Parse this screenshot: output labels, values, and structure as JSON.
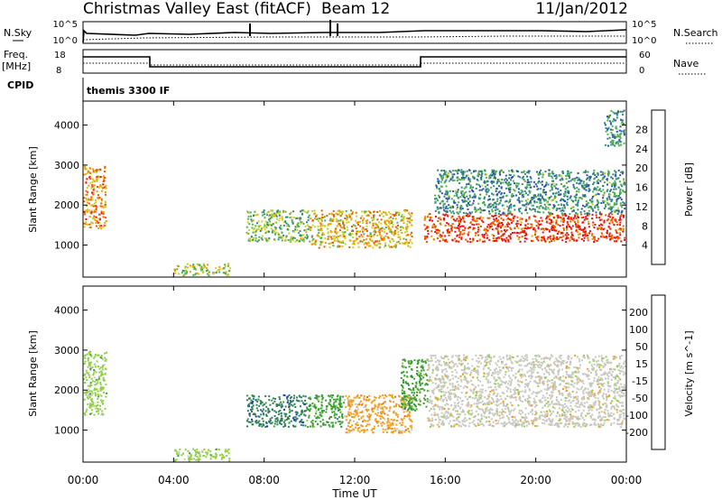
{
  "header": {
    "title": "Christmas Valley East (fitACF)",
    "beam": "Beam 12",
    "date": "11/Jan/2012"
  },
  "top_panels": {
    "nsky_label": "N.Sky",
    "nsky_ticks": [
      "10^5",
      "10^0"
    ],
    "nsearch_label": "N.Search",
    "nsearch_ticks": [
      "10^5",
      "10^0"
    ],
    "freq_label": "Freq.",
    "freq_unit": "[MHz]",
    "freq_ticks": [
      "18",
      "8"
    ],
    "nave_label": "Nave",
    "nave_ticks": [
      "60",
      "0"
    ],
    "cpid_label": "CPID",
    "cpid_value": "themis 3300 IF"
  },
  "colors": {
    "frame": "#000000",
    "background": "#ffffff"
  },
  "chart_data": [
    {
      "type": "heatmap",
      "name": "power",
      "ylabel": "Slant Range [km]",
      "xlabel": "Time UT",
      "xticks": [
        "00:00",
        "04:00",
        "08:00",
        "12:00",
        "16:00",
        "20:00",
        "00:00"
      ],
      "yticks": [
        "1000",
        "2000",
        "3000",
        "4000"
      ],
      "xlim": [
        0,
        24
      ],
      "ylim": [
        200,
        4600
      ],
      "colorbar": {
        "label": "Power [dB]",
        "ticks": [
          "4",
          "8",
          "12",
          "16",
          "20",
          "24",
          "28"
        ],
        "colors": [
          "#1f1fd8",
          "#2a55a8",
          "#2f8a7a",
          "#4fb050",
          "#c8d020",
          "#f0a000",
          "#f05800",
          "#e81010"
        ]
      },
      "echo_regions": [
        {
          "t0": 0.0,
          "t1": 1.0,
          "r0": 1400,
          "r1": 3000,
          "v": 0.75
        },
        {
          "t0": 4.0,
          "t1": 6.5,
          "r0": 250,
          "r1": 550,
          "v": 0.55
        },
        {
          "t0": 7.2,
          "t1": 10.0,
          "r0": 1100,
          "r1": 1900,
          "v": 0.45
        },
        {
          "t0": 10.0,
          "t1": 14.5,
          "r0": 950,
          "r1": 1900,
          "v": 0.65
        },
        {
          "t0": 15.0,
          "t1": 23.9,
          "r0": 1100,
          "r1": 1800,
          "v": 0.95
        },
        {
          "t0": 15.5,
          "t1": 23.9,
          "r0": 1800,
          "r1": 2900,
          "v": 0.3
        },
        {
          "t0": 23.0,
          "t1": 23.9,
          "r0": 3500,
          "r1": 4400,
          "v": 0.3
        }
      ]
    },
    {
      "type": "heatmap",
      "name": "velocity",
      "ylabel": "Slant Range [km]",
      "xlabel": "Time UT",
      "xticks": [
        "00:00",
        "04:00",
        "08:00",
        "12:00",
        "16:00",
        "20:00",
        "00:00"
      ],
      "yticks": [
        "1000",
        "2000",
        "3000",
        "4000"
      ],
      "xlim": [
        0,
        24
      ],
      "ylim": [
        200,
        4600
      ],
      "colorbar": {
        "label": "Velocity [m s^-1]",
        "ticks": [
          "200",
          "100",
          "50",
          "15",
          "-15",
          "-50",
          "-100",
          "-200"
        ],
        "colors": [
          "#1f2fc8",
          "#2e7d5a",
          "#3aa030",
          "#90d040",
          "#c8c8c0",
          "#f0a020",
          "#f07010",
          "#e83010",
          "#e01010"
        ]
      },
      "echo_regions": [
        {
          "t0": 0.0,
          "t1": 1.0,
          "r0": 1400,
          "r1": 3000,
          "v": "15"
        },
        {
          "t0": 4.0,
          "t1": 6.5,
          "r0": 250,
          "r1": 550,
          "v": "15"
        },
        {
          "t0": 7.2,
          "t1": 9.8,
          "r0": 1100,
          "r1": 1900,
          "v": "100"
        },
        {
          "t0": 9.8,
          "t1": 11.5,
          "r0": 1100,
          "r1": 1900,
          "v": "50"
        },
        {
          "t0": 11.5,
          "t1": 14.5,
          "r0": 950,
          "r1": 1900,
          "v": "-50"
        },
        {
          "t0": 14.0,
          "t1": 15.2,
          "r0": 1500,
          "r1": 2800,
          "v": "50"
        },
        {
          "t0": 15.2,
          "t1": 23.9,
          "r0": 1100,
          "r1": 2900,
          "v": "-15"
        }
      ]
    }
  ]
}
